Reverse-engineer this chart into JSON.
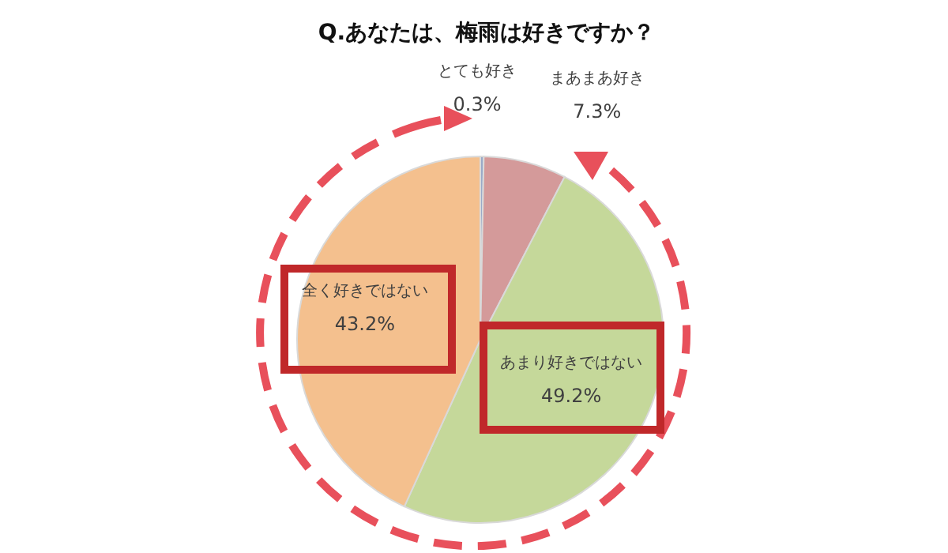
{
  "chart_data": {
    "type": "pie",
    "title": "Q.あなたは、梅雨は好きですか？",
    "categories": [
      "とても好き",
      "まあまあ好き",
      "あまり好きではない",
      "全く好きではない"
    ],
    "values": [
      0.3,
      7.3,
      49.2,
      43.2
    ],
    "value_labels": [
      "0.3%",
      "7.3%",
      "49.2%",
      "43.2%"
    ],
    "colors": [
      "#9aaac8",
      "#d49a9a",
      "#c5d89a",
      "#f4c08e"
    ],
    "legend": false
  }
}
